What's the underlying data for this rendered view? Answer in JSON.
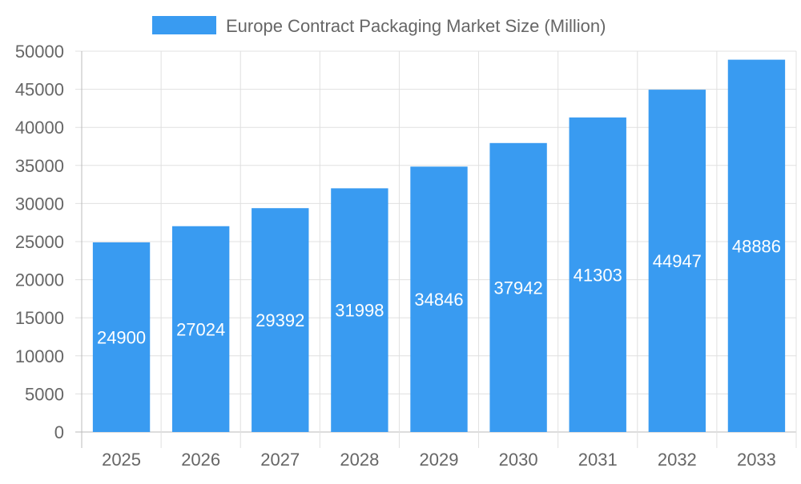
{
  "chart_data": {
    "type": "bar",
    "title": "",
    "xlabel": "",
    "ylabel": "",
    "legend": {
      "position": "top",
      "entries": [
        "Europe Contract Packaging Market Size (Million)"
      ]
    },
    "categories": [
      "2025",
      "2026",
      "2027",
      "2028",
      "2029",
      "2030",
      "2031",
      "2032",
      "2033"
    ],
    "series": [
      {
        "name": "Europe Contract Packaging Market Size (Million)",
        "values": [
          24900,
          27024,
          29392,
          31998,
          34846,
          37942,
          41303,
          44947,
          48886
        ],
        "color": "#399bf1"
      }
    ],
    "ylim": [
      0,
      50000
    ],
    "yticks": [
      0,
      5000,
      10000,
      15000,
      20000,
      25000,
      30000,
      35000,
      40000,
      45000,
      50000
    ],
    "grid": true,
    "data_labels": true
  }
}
